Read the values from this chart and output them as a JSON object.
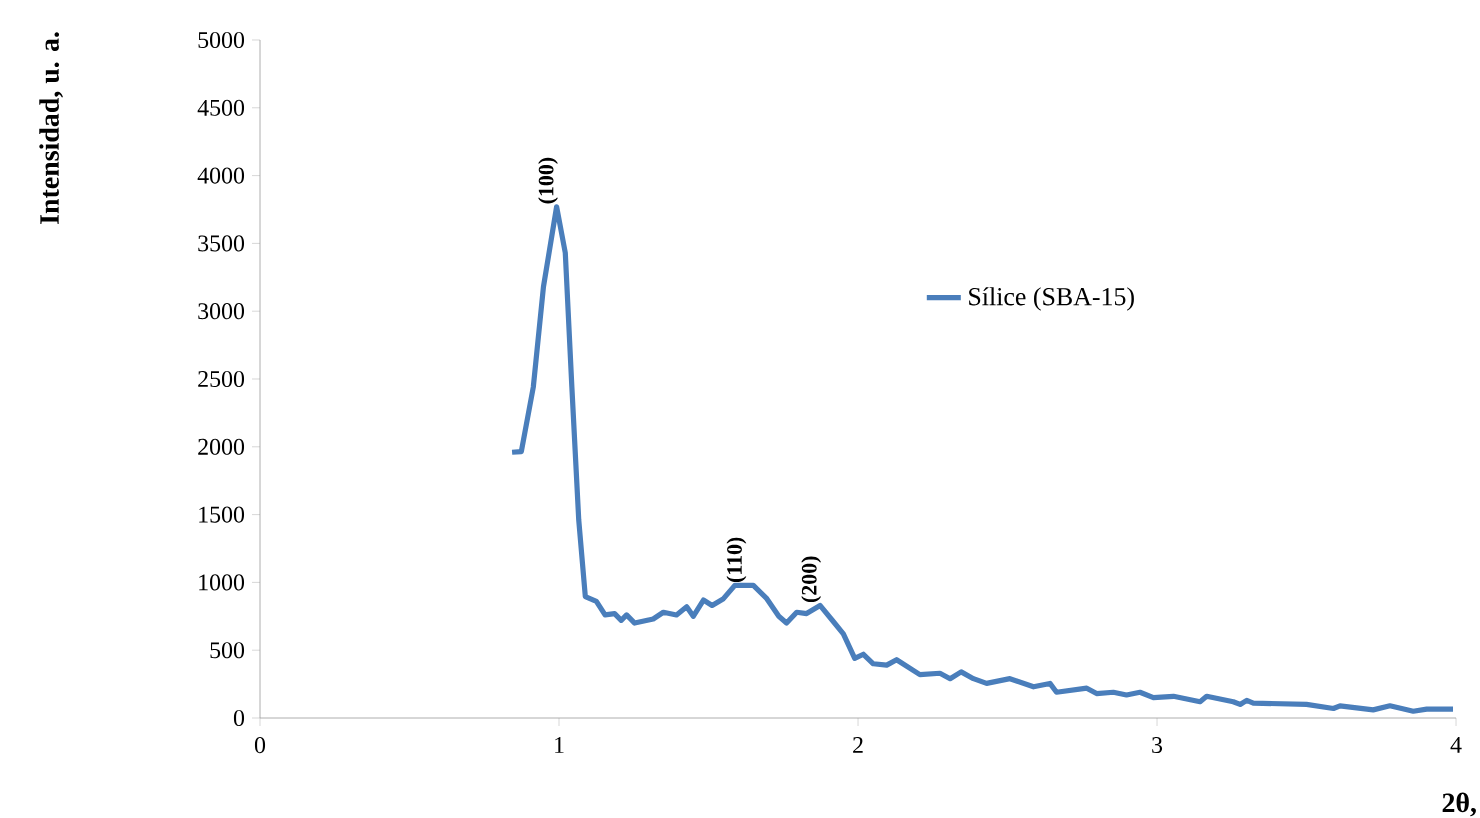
{
  "chart_data": {
    "type": "line",
    "xlabel": "2θ,",
    "ylabel": "Intensidad, u. a.",
    "legend": "right",
    "xlim": [
      0,
      4
    ],
    "ylim": [
      0,
      5000
    ],
    "xticks": [
      0,
      1,
      2,
      3,
      4
    ],
    "yticks": [
      0,
      500,
      1000,
      1500,
      2000,
      2500,
      3000,
      3500,
      4000,
      4500,
      5000
    ],
    "grid": false,
    "marker": "none",
    "line_style": "solid",
    "annotations": [
      {
        "text": "(100)",
        "x": 0.99,
        "y": 3770
      },
      {
        "text": "(110)",
        "x": 1.62,
        "y": 978
      },
      {
        "text": "(200)",
        "x": 1.87,
        "y": 830
      }
    ],
    "series": [
      {
        "name": "Sílice (SBA-15)",
        "color": "#4a7ebb",
        "x": [
          0.843,
          0.874,
          0.914,
          0.948,
          0.992,
          1.021,
          1.043,
          1.066,
          1.088,
          1.125,
          1.154,
          1.186,
          1.208,
          1.226,
          1.253,
          1.315,
          1.349,
          1.393,
          1.427,
          1.449,
          1.483,
          1.512,
          1.55,
          1.588,
          1.65,
          1.695,
          1.735,
          1.761,
          1.795,
          1.828,
          1.873,
          1.918,
          1.951,
          1.989,
          2.018,
          2.051,
          2.096,
          2.129,
          2.207,
          2.274,
          2.308,
          2.345,
          2.386,
          2.43,
          2.508,
          2.587,
          2.642,
          2.664,
          2.765,
          2.798,
          2.854,
          2.898,
          2.943,
          2.988,
          3.055,
          3.144,
          3.166,
          3.255,
          3.278,
          3.3,
          3.322,
          3.5,
          3.59,
          3.612,
          3.723,
          3.779,
          3.857,
          3.902,
          3.99
        ],
        "values": [
          1960,
          1965,
          2440,
          3180,
          3770,
          3430,
          2440,
          1460,
          895,
          860,
          760,
          770,
          720,
          760,
          700,
          730,
          780,
          760,
          820,
          750,
          870,
          830,
          880,
          978,
          978,
          880,
          750,
          700,
          780,
          770,
          830,
          710,
          620,
          440,
          470,
          400,
          390,
          430,
          320,
          330,
          290,
          340,
          290,
          255,
          290,
          230,
          255,
          190,
          220,
          180,
          190,
          170,
          190,
          150,
          160,
          120,
          160,
          120,
          100,
          130,
          110,
          100,
          70,
          90,
          60,
          90,
          50,
          65,
          65
        ]
      }
    ]
  }
}
